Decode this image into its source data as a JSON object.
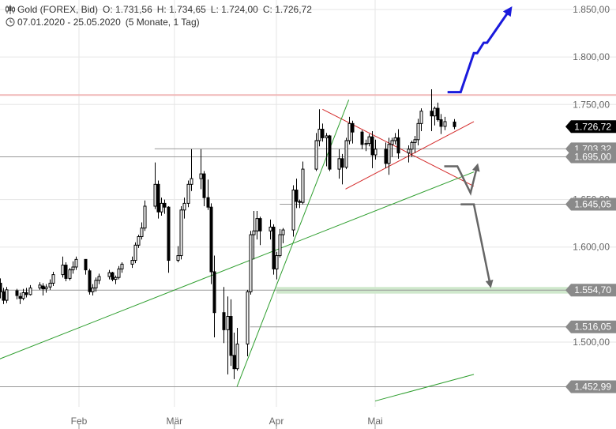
{
  "header": {
    "instrument": "Gold (FOREX, Bid)",
    "open": "O: 1.731,56",
    "high": "H: 1.734,65",
    "low": "L: 1.724,00",
    "close": "C: 1.726,72",
    "range": "07.01.2020 - 25.05.2020",
    "interval": "(5 Monate, 1 Tag)",
    "icons": [
      "candlestick-icon",
      "clock-icon"
    ]
  },
  "chart_data": {
    "type": "candlestick",
    "ylim": [
      1438,
      1868
    ],
    "y_ticks": [
      1850,
      1800,
      1750,
      1650,
      1600,
      1500
    ],
    "y_tick_labels": [
      "1.850,00",
      "1.800,00",
      "1.750,00",
      "1.650,00",
      "1.600,00",
      "1.500,00"
    ],
    "x_labels": [
      {
        "label": "Feb",
        "date": "2020-02-01"
      },
      {
        "label": "Mär",
        "date": "2020-03-01"
      },
      {
        "label": "Apr",
        "date": "2020-04-01"
      },
      {
        "label": "Mai",
        "date": "2020-05-01"
      }
    ],
    "price_badges": [
      {
        "value": 1726.72,
        "label": "1.726,72",
        "style": "current"
      },
      {
        "value": 1703.32,
        "label": "1.703,32",
        "style": "level"
      },
      {
        "value": 1695.0,
        "label": "1.695,00",
        "style": "level"
      },
      {
        "value": 1645.05,
        "label": "1.645,05",
        "style": "level"
      },
      {
        "value": 1554.7,
        "label": "1.554,70",
        "style": "level"
      },
      {
        "value": 1516.05,
        "label": "1.516,05",
        "style": "level"
      },
      {
        "value": 1452.99,
        "label": "1.452,99",
        "style": "level"
      }
    ],
    "horizontal_lines": [
      {
        "value": 1760,
        "color": "#f0b8b8",
        "start_date": "2020-01-07"
      },
      {
        "value": 1703.32,
        "color": "#999999",
        "start_date": "2020-02-24"
      },
      {
        "value": 1695.0,
        "color": "#999999",
        "start_date": "2020-01-07"
      },
      {
        "value": 1645.05,
        "color": "#999999",
        "start_date": "2020-04-02"
      },
      {
        "value": 1554.7,
        "color": "#999999",
        "start_date": "2020-01-07"
      },
      {
        "value": 1516.05,
        "color": "#999999",
        "start_date": "2020-03-24"
      },
      {
        "value": 1452.99,
        "color": "#999999",
        "start_date": "2020-01-07"
      }
    ],
    "zones": [
      {
        "from": 1551,
        "to": 1558,
        "color": "#cfe8cc",
        "start_date": "2020-04-01"
      }
    ],
    "trend_lines": [
      {
        "color": "#d42a2a",
        "points": [
          [
            "2020-04-15",
            1745
          ],
          [
            "2020-05-31",
            1664
          ]
        ]
      },
      {
        "color": "#d42a2a",
        "points": [
          [
            "2020-04-22",
            1661
          ],
          [
            "2020-05-31",
            1732
          ]
        ]
      },
      {
        "color": "#2e9e2e",
        "points": [
          [
            "2020-03-20",
            1453
          ],
          [
            "2020-04-23",
            1755
          ]
        ]
      },
      {
        "color": "#2e9e2e",
        "points": [
          [
            "2020-01-07",
            1481
          ],
          [
            "2020-05-31",
            1679
          ]
        ]
      },
      {
        "color": "#2e9e2e",
        "points": [
          [
            "2020-05-01",
            1438
          ],
          [
            "2020-05-31",
            1466
          ]
        ]
      }
    ],
    "forecast_arrows": [
      {
        "color": "#1a1adc",
        "points": [
          [
            "2020-05-23",
            1763
          ],
          [
            "2020-05-27",
            1763
          ],
          [
            "2020-05-31",
            1804
          ],
          [
            "2020-06-01",
            1804
          ],
          [
            "2020-06-03",
            1815
          ],
          [
            "2020-06-04",
            1815
          ],
          [
            "2020-06-11",
            1850
          ]
        ]
      },
      {
        "color": "#666666",
        "points": [
          [
            "2020-05-22",
            1685
          ],
          [
            "2020-05-26",
            1685
          ],
          [
            "2020-05-30",
            1657
          ],
          [
            "2020-06-01",
            1685
          ]
        ]
      },
      {
        "color": "#666666",
        "points": [
          [
            "2020-05-27",
            1645
          ],
          [
            "2020-05-31",
            1645
          ],
          [
            "2020-06-05",
            1560
          ]
        ]
      }
    ],
    "series": [
      {
        "ohlc": [
          [
            "2020-01-07",
            1573,
            1578,
            1555,
            1562
          ],
          [
            "2020-01-08",
            1562,
            1567,
            1546,
            1553
          ],
          [
            "2020-01-09",
            1553,
            1557,
            1540,
            1544
          ],
          [
            "2020-01-10",
            1544,
            1558,
            1541,
            1555
          ],
          [
            "2020-01-13",
            1554,
            1556,
            1545,
            1549
          ],
          [
            "2020-01-14",
            1548,
            1552,
            1540,
            1546
          ],
          [
            "2020-01-15",
            1546,
            1556,
            1544,
            1552
          ],
          [
            "2020-01-16",
            1552,
            1557,
            1547,
            1550
          ],
          [
            "2020-01-17",
            1550,
            1560,
            1549,
            1557
          ],
          [
            "2020-01-20",
            1557,
            1563,
            1555,
            1560
          ],
          [
            "2020-01-21",
            1559,
            1562,
            1549,
            1556
          ],
          [
            "2020-01-22",
            1556,
            1561,
            1552,
            1558
          ],
          [
            "2020-01-23",
            1558,
            1566,
            1555,
            1562
          ],
          [
            "2020-01-24",
            1562,
            1574,
            1559,
            1571
          ],
          [
            "2020-01-27",
            1571,
            1590,
            1568,
            1581
          ],
          [
            "2020-01-28",
            1581,
            1584,
            1564,
            1567
          ],
          [
            "2020-01-29",
            1567,
            1578,
            1565,
            1576
          ],
          [
            "2020-01-30",
            1576,
            1585,
            1572,
            1579
          ],
          [
            "2020-01-31",
            1579,
            1590,
            1576,
            1587
          ],
          [
            "2020-02-03",
            1587,
            1587,
            1571,
            1576
          ],
          [
            "2020-02-04",
            1575,
            1577,
            1550,
            1553
          ],
          [
            "2020-02-05",
            1553,
            1561,
            1549,
            1557
          ],
          [
            "2020-02-06",
            1557,
            1568,
            1553,
            1565
          ],
          [
            "2020-02-07",
            1565,
            1572,
            1561,
            1569
          ],
          [
            "2020-02-10",
            1569,
            1576,
            1566,
            1573
          ],
          [
            "2020-02-11",
            1573,
            1574,
            1564,
            1566
          ],
          [
            "2020-02-12",
            1566,
            1570,
            1561,
            1568
          ],
          [
            "2020-02-13",
            1568,
            1580,
            1566,
            1577
          ],
          [
            "2020-02-14",
            1577,
            1584,
            1573,
            1582
          ],
          [
            "2020-02-17",
            1582,
            1590,
            1578,
            1586
          ],
          [
            "2020-02-18",
            1586,
            1605,
            1583,
            1602
          ],
          [
            "2020-02-19",
            1602,
            1613,
            1599,
            1611
          ],
          [
            "2020-02-20",
            1611,
            1626,
            1608,
            1620
          ],
          [
            "2020-02-21",
            1620,
            1649,
            1617,
            1643
          ],
          [
            "2020-02-24",
            1643,
            1689,
            1640,
            1666
          ],
          [
            "2020-02-25",
            1666,
            1670,
            1630,
            1637
          ],
          [
            "2020-02-26",
            1637,
            1652,
            1633,
            1646
          ],
          [
            "2020-02-27",
            1646,
            1650,
            1635,
            1642
          ],
          [
            "2020-02-28",
            1642,
            1643,
            1573,
            1586
          ],
          [
            "2020-03-02",
            1586,
            1601,
            1584,
            1591
          ],
          [
            "2020-03-03",
            1591,
            1643,
            1587,
            1639
          ],
          [
            "2020-03-04",
            1639,
            1652,
            1630,
            1646
          ],
          [
            "2020-03-05",
            1646,
            1670,
            1642,
            1666
          ],
          [
            "2020-03-06",
            1666,
            1703,
            1659,
            1672
          ],
          [
            "2020-03-09",
            1672,
            1703,
            1661,
            1677
          ],
          [
            "2020-03-10",
            1677,
            1680,
            1643,
            1652
          ],
          [
            "2020-03-11",
            1652,
            1671,
            1639,
            1642
          ],
          [
            "2020-03-12",
            1642,
            1646,
            1561,
            1574
          ],
          [
            "2020-03-13",
            1574,
            1591,
            1505,
            1531
          ],
          [
            "2020-03-16",
            1531,
            1558,
            1499,
            1513
          ],
          [
            "2020-03-17",
            1513,
            1548,
            1466,
            1527
          ],
          [
            "2020-03-18",
            1527,
            1545,
            1475,
            1486
          ],
          [
            "2020-03-19",
            1486,
            1510,
            1461,
            1472
          ],
          [
            "2020-03-20",
            1472,
            1515,
            1470,
            1498
          ],
          [
            "2020-03-23",
            1498,
            1555,
            1485,
            1553
          ],
          [
            "2020-03-24",
            1553,
            1617,
            1550,
            1613
          ],
          [
            "2020-03-25",
            1613,
            1638,
            1587,
            1617
          ],
          [
            "2020-03-26",
            1617,
            1638,
            1608,
            1630
          ],
          [
            "2020-03-27",
            1630,
            1632,
            1602,
            1617
          ],
          [
            "2020-03-30",
            1617,
            1629,
            1608,
            1621
          ],
          [
            "2020-03-31",
            1621,
            1624,
            1571,
            1577
          ],
          [
            "2020-04-01",
            1577,
            1595,
            1566,
            1591
          ],
          [
            "2020-04-02",
            1591,
            1619,
            1589,
            1613
          ],
          [
            "2020-04-03",
            1613,
            1620,
            1604,
            1618
          ],
          [
            "2020-04-06",
            1618,
            1665,
            1611,
            1660
          ],
          [
            "2020-04-07",
            1660,
            1672,
            1641,
            1648
          ],
          [
            "2020-04-08",
            1648,
            1650,
            1641,
            1647
          ],
          [
            "2020-04-09",
            1647,
            1690,
            1645,
            1682
          ],
          [
            "2020-04-13",
            1682,
            1720,
            1680,
            1712
          ],
          [
            "2020-04-14",
            1712,
            1745,
            1706,
            1724
          ],
          [
            "2020-04-15",
            1724,
            1730,
            1711,
            1715
          ],
          [
            "2020-04-16",
            1715,
            1720,
            1685,
            1717
          ],
          [
            "2020-04-17",
            1717,
            1718,
            1680,
            1682
          ],
          [
            "2020-04-20",
            1682,
            1703,
            1672,
            1693
          ],
          [
            "2020-04-21",
            1693,
            1698,
            1666,
            1684
          ],
          [
            "2020-04-22",
            1684,
            1715,
            1682,
            1712
          ],
          [
            "2020-04-23",
            1712,
            1737,
            1708,
            1730
          ],
          [
            "2020-04-24",
            1730,
            1733,
            1709,
            1721
          ],
          [
            "2020-04-27",
            1721,
            1723,
            1703,
            1708
          ],
          [
            "2020-04-28",
            1708,
            1713,
            1701,
            1709
          ],
          [
            "2020-04-29",
            1709,
            1719,
            1706,
            1716
          ],
          [
            "2020-04-30",
            1716,
            1722,
            1683,
            1697
          ],
          [
            "2020-05-01",
            1697,
            1713,
            1692,
            1703
          ],
          [
            "2020-05-04",
            1703,
            1710,
            1683,
            1688
          ],
          [
            "2020-05-05",
            1688,
            1715,
            1676,
            1708
          ],
          [
            "2020-05-06",
            1708,
            1715,
            1695,
            1712
          ],
          [
            "2020-05-07",
            1712,
            1720,
            1708,
            1715
          ],
          [
            "2020-05-08",
            1715,
            1724,
            1693,
            1699
          ],
          [
            "2020-05-11",
            1699,
            1707,
            1689,
            1703
          ],
          [
            "2020-05-12",
            1703,
            1712,
            1695,
            1710
          ],
          [
            "2020-05-13",
            1710,
            1717,
            1699,
            1713
          ],
          [
            "2020-05-14",
            1713,
            1735,
            1707,
            1730
          ],
          [
            "2020-05-15",
            1730,
            1746,
            1722,
            1743
          ],
          [
            "2020-05-18",
            1743,
            1766,
            1722,
            1738
          ],
          [
            "2020-05-19",
            1738,
            1748,
            1728,
            1746
          ],
          [
            "2020-05-20",
            1746,
            1752,
            1732,
            1734
          ],
          [
            "2020-05-21",
            1734,
            1740,
            1719,
            1727
          ],
          [
            "2020-05-22",
            1727,
            1737,
            1723,
            1732
          ],
          [
            "2020-05-25",
            1731.56,
            1734.65,
            1724.0,
            1726.72
          ]
        ]
      }
    ]
  },
  "colors": {
    "up_candle": "#ffffff",
    "down_candle": "#000000",
    "grid": "#e6e6e6",
    "axis_text": "#666666",
    "current_badge": "#000000",
    "level_badge": "#8a8a8a"
  }
}
